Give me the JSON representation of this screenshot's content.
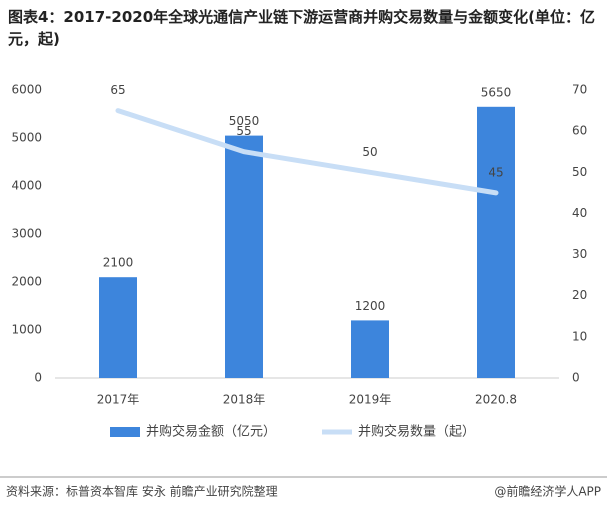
{
  "chart_data": {
    "type": "combo",
    "title": "图表4：2017-2020年全球光通信产业链下游运营商并购交易数量与金额变化(单位：亿元，起)",
    "categories": [
      "2017年",
      "2018年",
      "2019年",
      "2020.8"
    ],
    "series": [
      {
        "name": "并购交易金额（亿元）",
        "type": "bar",
        "color": "#3d85dc",
        "values": [
          2100,
          5050,
          1200,
          5650
        ]
      },
      {
        "name": "并购交易数量（起）",
        "type": "line",
        "axis": "y2",
        "color": "#c8def6",
        "values": [
          65,
          55,
          50,
          45
        ]
      }
    ],
    "ylim": [
      0,
      6000
    ],
    "yticks": [
      0,
      1000,
      2000,
      3000,
      4000,
      5000,
      6000
    ],
    "y2lim": [
      0,
      70
    ],
    "y2ticks": [
      0,
      10,
      20,
      30,
      40,
      50,
      60,
      70
    ],
    "grid": false,
    "source": "资料来源：标普资本智库 安永 前瞻产业研究院整理",
    "credit": "@前瞻经济学人APP"
  }
}
